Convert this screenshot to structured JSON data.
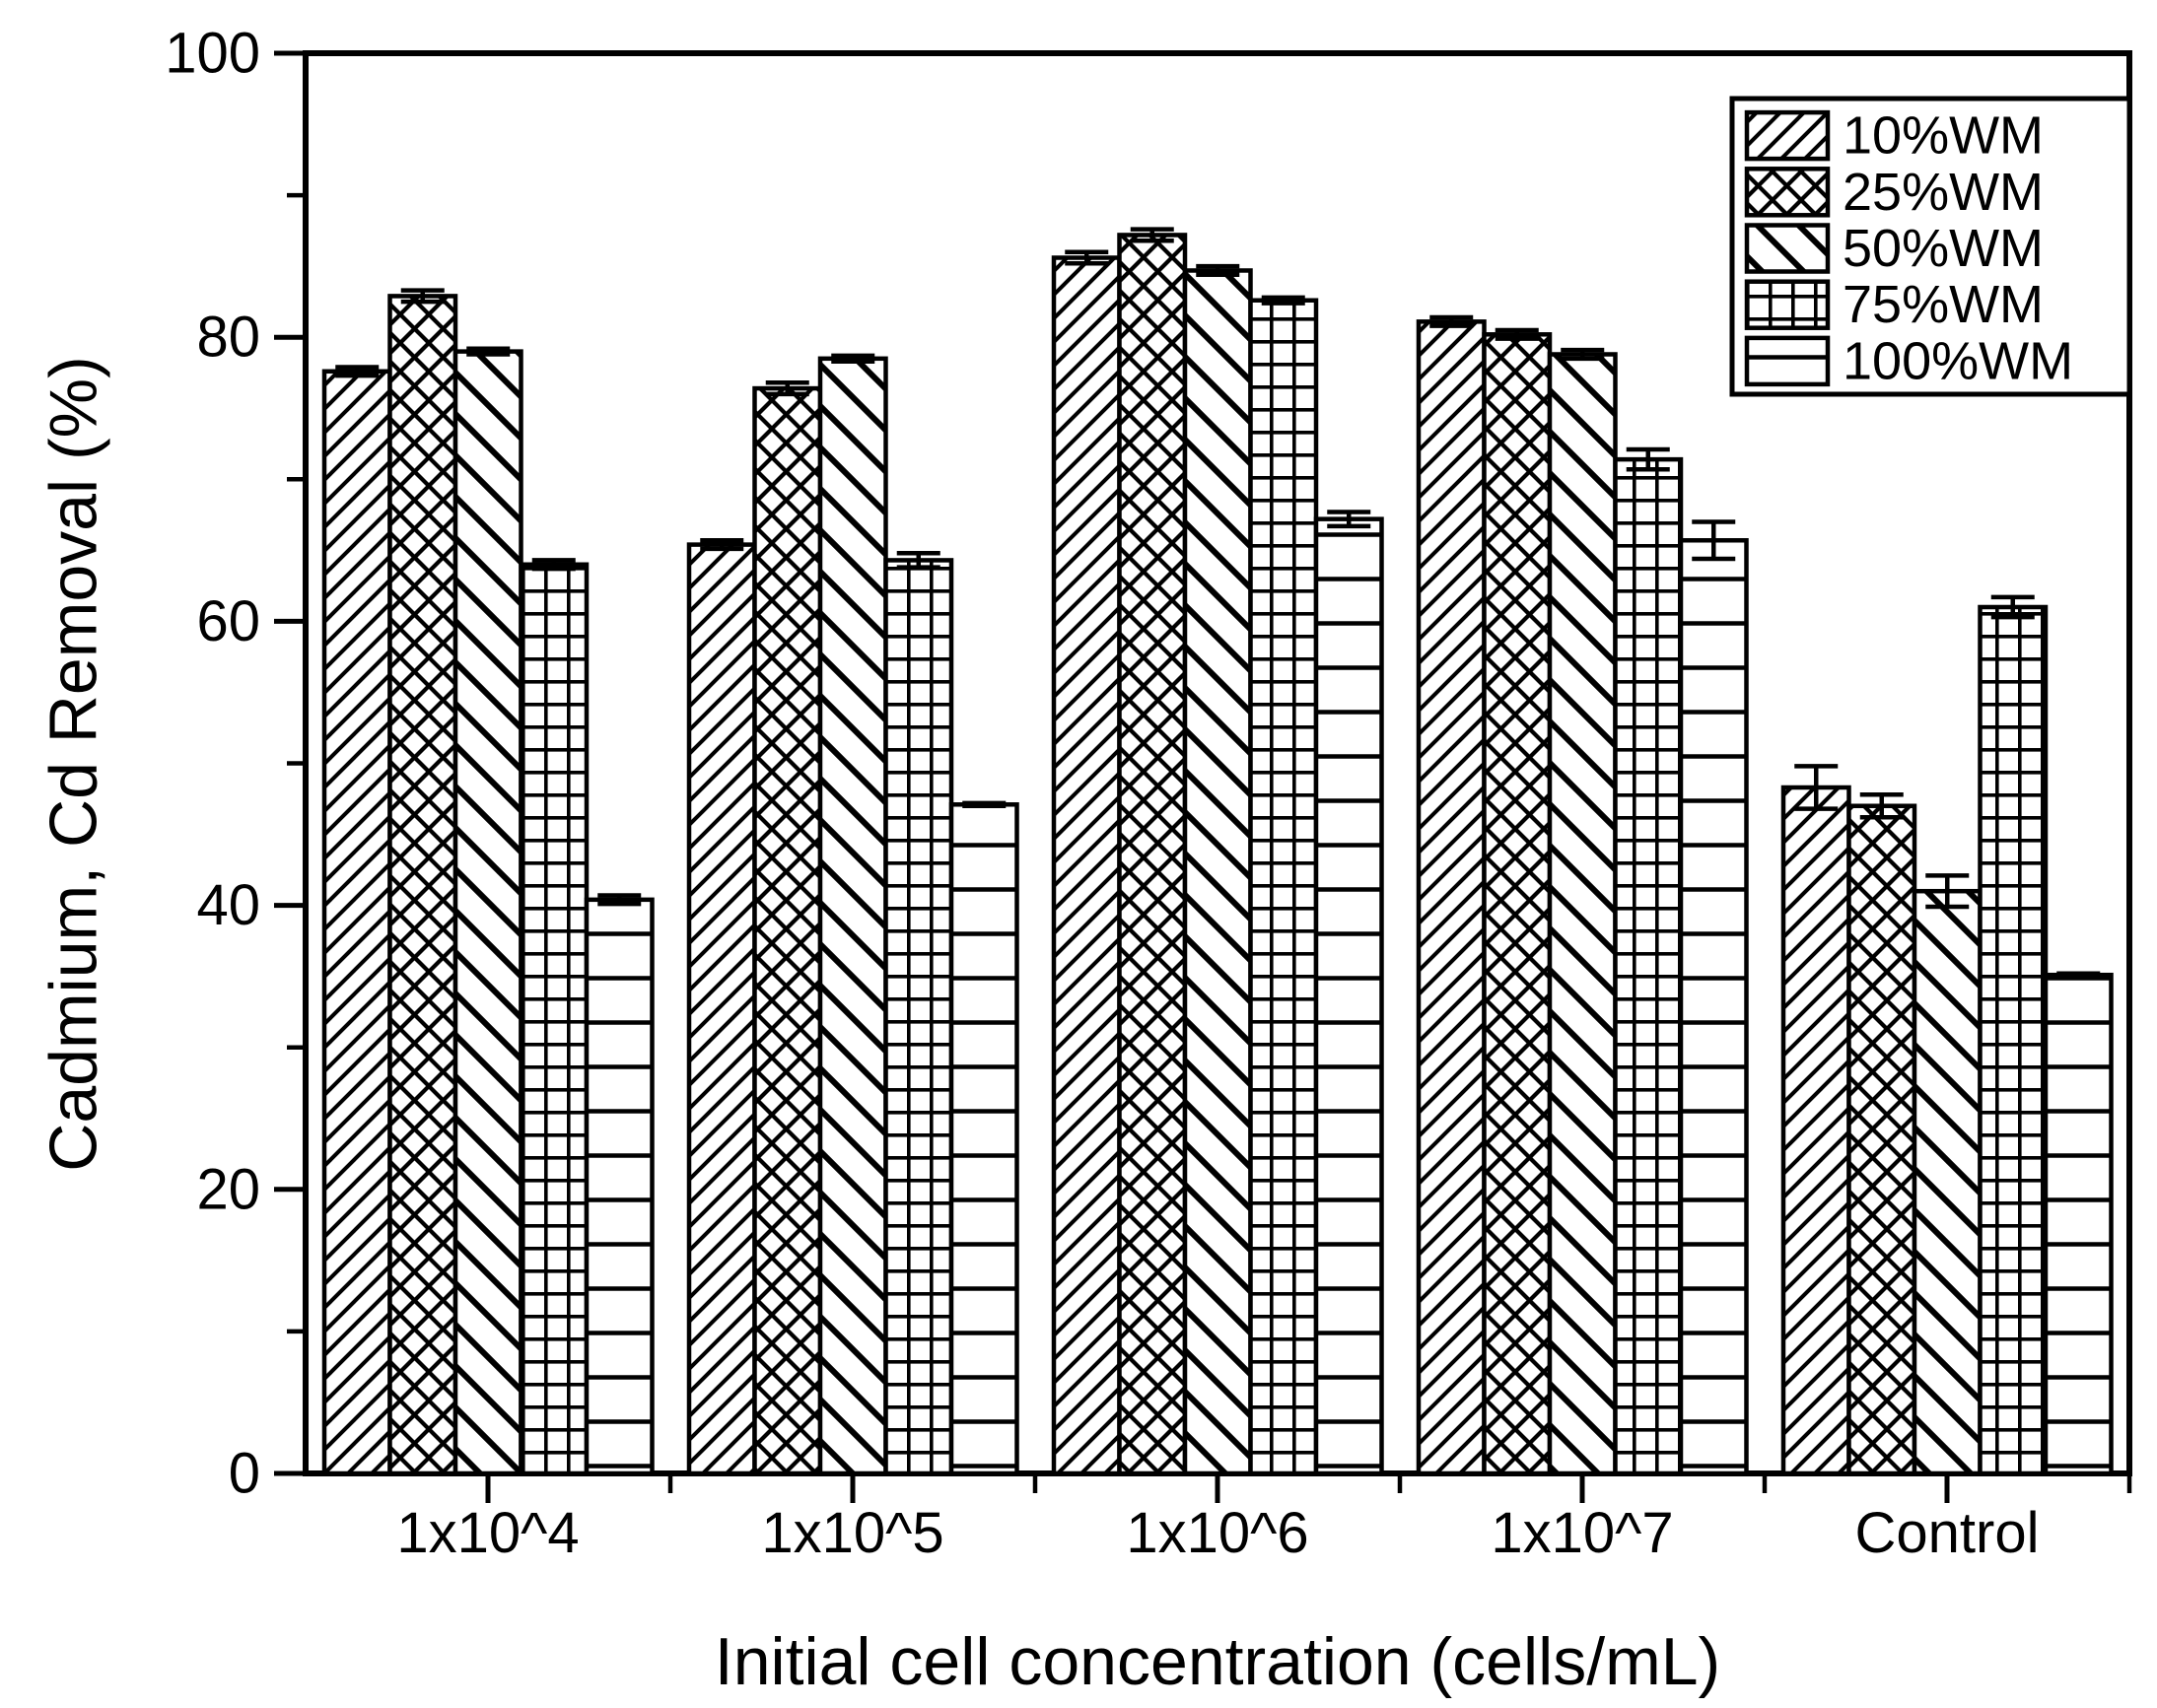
{
  "figure": {
    "background_color": "#ffffff",
    "line_color": "#000000"
  },
  "chart_data": {
    "type": "bar",
    "title": "",
    "xlabel": "Initial cell concentration (cells/mL)",
    "ylabel": "Cadmium, Cd Removal (%)",
    "categories": [
      "1x10^4",
      "1x10^5",
      "1x10^6",
      "1x10^7",
      "Control"
    ],
    "series": [
      {
        "name": "10%WM",
        "pattern": "diagonal-forward",
        "values": [
          77.6,
          65.4,
          85.6,
          81.1,
          48.3
        ],
        "errors": [
          0.3,
          0.3,
          0.4,
          0.3,
          1.5
        ]
      },
      {
        "name": "25%WM",
        "pattern": "crosshatch",
        "values": [
          82.9,
          76.4,
          87.2,
          80.2,
          47.0
        ],
        "errors": [
          0.4,
          0.4,
          0.4,
          0.3,
          0.8
        ]
      },
      {
        "name": "50%WM",
        "pattern": "diagonal-back",
        "values": [
          79.0,
          78.5,
          84.7,
          78.8,
          41.0
        ],
        "errors": [
          0.2,
          0.2,
          0.3,
          0.3,
          1.1
        ]
      },
      {
        "name": "75%WM",
        "pattern": "grid",
        "values": [
          64.0,
          64.3,
          82.6,
          71.4,
          61.0
        ],
        "errors": [
          0.3,
          0.5,
          0.2,
          0.7,
          0.7
        ]
      },
      {
        "name": "100%WM",
        "pattern": "horizontal",
        "values": [
          40.4,
          47.1,
          67.2,
          65.7,
          35.1
        ],
        "errors": [
          0.3,
          0.1,
          0.5,
          1.3,
          0.1
        ]
      }
    ],
    "ylim": [
      0,
      100
    ],
    "yticks_major": [
      0,
      20,
      40,
      60,
      80,
      100
    ],
    "yticks_minor": [
      10,
      30,
      50,
      70,
      90
    ],
    "grid": false,
    "legend_position": "top-right",
    "bar_fill": "#ffffff",
    "stroke_color": "#000000"
  }
}
